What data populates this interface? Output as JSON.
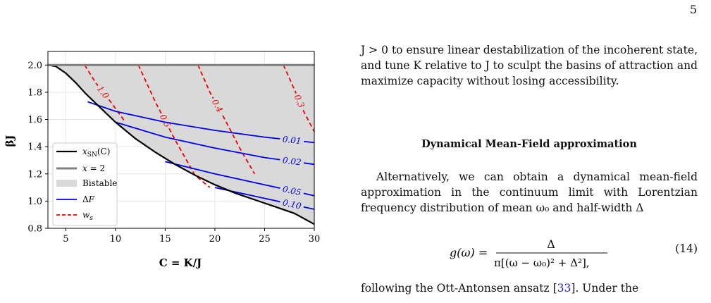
{
  "page_number": "5",
  "paragraphs": {
    "p1": "J > 0 to ensure linear destabilization of the incoherent state, and tune K relative to J to sculpt the basins of attraction and maximize capacity without losing accessibility.",
    "p2": "Alternatively, we can obtain a dynamical mean-field approximation in the continuum limit with Lorentzian frequency distribution of mean ω₀ and half-width Δ",
    "p3_before": "following the Ott-Antonsen ansatz [",
    "p3_cite": "33",
    "p3_after": "].   Under the"
  },
  "section_heading": "Dynamical Mean-Field approximation",
  "equation": {
    "lhs": "g(ω) =",
    "numerator": "Δ",
    "denominator": "π[(ω − ω₀)² + Δ²],",
    "number": "(14)"
  },
  "chart_data": {
    "type": "line",
    "xlabel": "C = K/J",
    "ylabel": "βJ",
    "xlim": [
      3.2,
      30
    ],
    "ylim": [
      0.8,
      2.1
    ],
    "x_ticks": [
      5,
      10,
      15,
      20,
      25,
      30
    ],
    "y_ticks": [
      0.8,
      1.0,
      1.2,
      1.4,
      1.6,
      1.8,
      2.0
    ],
    "grid": true,
    "legend_position": "lower-left",
    "legend": [
      "x_SN(C)",
      "x = 2",
      "Bistable",
      "ΔF",
      "w_s"
    ],
    "colors": {
      "saddle_node": "#000000",
      "x_equals_2": "#808080",
      "bistable_fill": "#d9d9d9",
      "delta_f": "#0000ee",
      "w_s": "#ee0000"
    },
    "x_sn_curve": {
      "x": [
        3.2,
        4.0,
        5.0,
        6.0,
        7.0,
        8.0,
        9.0,
        10.0,
        12.0,
        14.0,
        16.0,
        18.0,
        20.0,
        22.0,
        24.0,
        26.0,
        28.0,
        30.0
      ],
      "y": [
        2.0,
        1.99,
        1.94,
        1.87,
        1.79,
        1.72,
        1.65,
        1.58,
        1.46,
        1.36,
        1.27,
        1.19,
        1.12,
        1.06,
        1.01,
        0.96,
        0.91,
        0.83
      ]
    },
    "x_equals_2_line": {
      "y": 2.0
    },
    "delta_f_series": [
      {
        "label": "0.01",
        "x": [
          7.2,
          10,
          15,
          20,
          25,
          30
        ],
        "y": [
          1.73,
          1.66,
          1.58,
          1.52,
          1.47,
          1.43
        ]
      },
      {
        "label": "0.02",
        "x": [
          10,
          15,
          20,
          25,
          30
        ],
        "y": [
          1.58,
          1.47,
          1.39,
          1.32,
          1.27
        ]
      },
      {
        "label": "0.05",
        "x": [
          15,
          20,
          25,
          30
        ],
        "y": [
          1.29,
          1.2,
          1.12,
          1.04
        ]
      },
      {
        "label": "0.10",
        "x": [
          20,
          25,
          30
        ],
        "y": [
          1.1,
          1.02,
          0.94
        ]
      }
    ],
    "w_s_series": [
      {
        "label": "1.0",
        "x": [
          6.9,
          8.0,
          9.5,
          11.0
        ],
        "y": [
          2.0,
          1.87,
          1.73,
          1.58
        ]
      },
      {
        "label": "0.5",
        "x": [
          12.3,
          14,
          16,
          18,
          19.5
        ],
        "y": [
          2.0,
          1.73,
          1.45,
          1.19,
          1.1
        ]
      },
      {
        "label": "0.4",
        "x": [
          18.3,
          19.5,
          21,
          22.5,
          24
        ],
        "y": [
          2.0,
          1.8,
          1.6,
          1.39,
          1.2
        ]
      },
      {
        "label": "0.3",
        "x": [
          26.9,
          28,
          29,
          30
        ],
        "y": [
          2.0,
          1.82,
          1.65,
          1.51
        ]
      }
    ]
  }
}
